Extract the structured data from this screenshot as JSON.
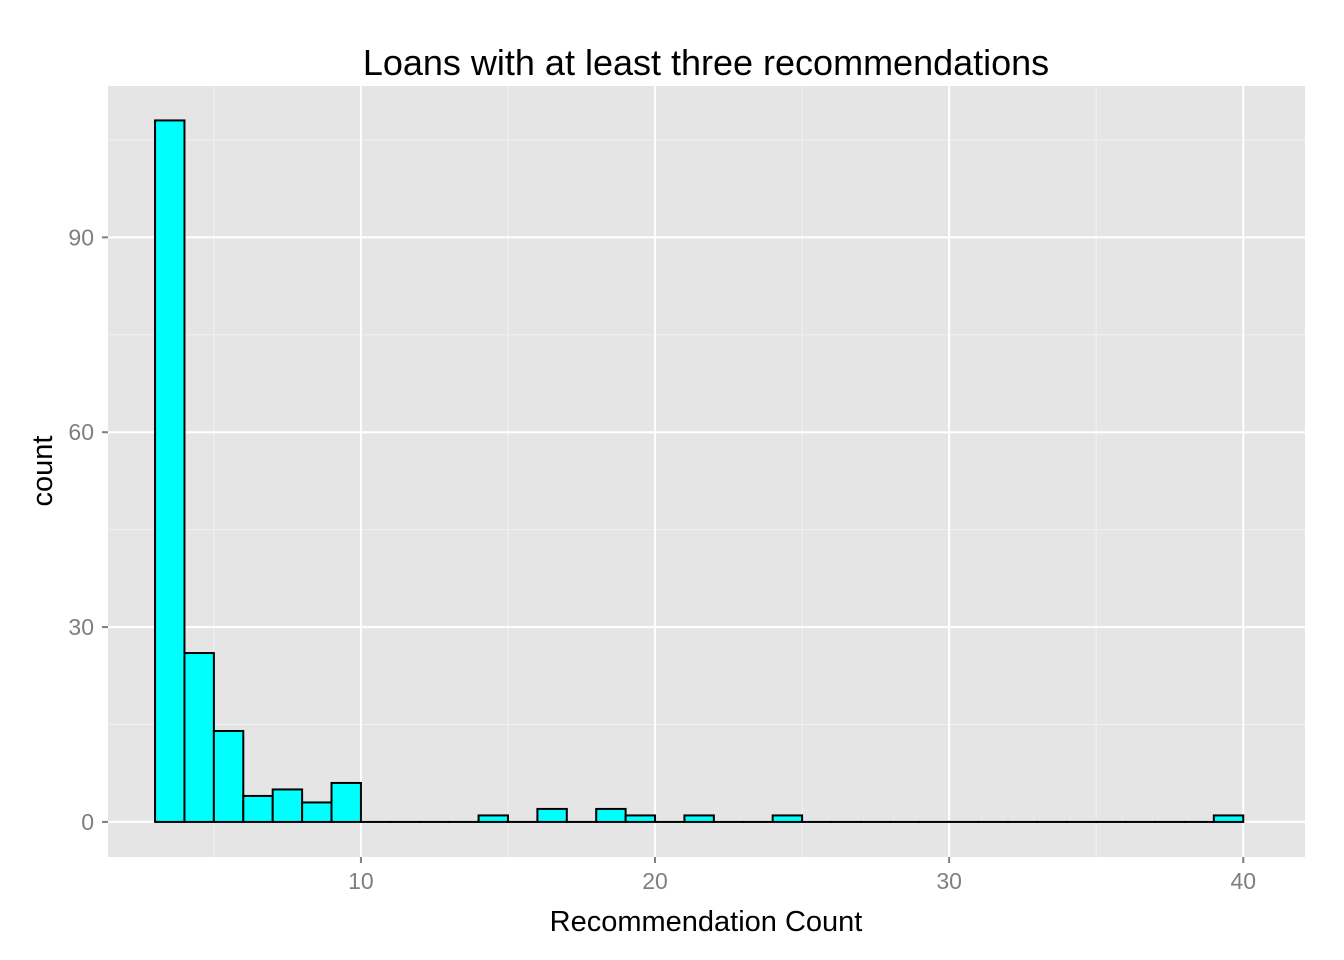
{
  "colors": {
    "panel_background": "#e5e5e5",
    "grid_major": "#ffffff",
    "grid_minor": "#f2f2f2",
    "bar_fill": "#00ffff",
    "bar_outline": "#000000",
    "tick_text": "#7f7f7f",
    "tick_mark": "#7f7f7f"
  },
  "chart_data": {
    "type": "bar",
    "title": "Loans with at least three recommendations",
    "xlabel": "Recommendation Count",
    "ylabel": "count",
    "xlim": [
      1.4,
      42.1
    ],
    "ylim": [
      -5.4,
      113.3
    ],
    "binwidth": 1,
    "bin_starts": [
      3,
      4,
      5,
      6,
      7,
      8,
      9,
      10,
      11,
      12,
      13,
      14,
      15,
      16,
      17,
      18,
      19,
      20,
      21,
      22,
      23,
      24,
      25,
      26,
      27,
      28,
      29,
      30,
      31,
      32,
      33,
      34,
      35,
      36,
      37,
      38,
      39
    ],
    "values": [
      108,
      26,
      14,
      4,
      5,
      3,
      6,
      0,
      0,
      0,
      0,
      1,
      0,
      2,
      0,
      2,
      1,
      0,
      1,
      0,
      0,
      1,
      0,
      0,
      0,
      0,
      0,
      0,
      0,
      0,
      0,
      0,
      0,
      0,
      0,
      0,
      1
    ],
    "x_ticks": [
      10,
      20,
      30,
      40
    ],
    "x_tick_labels": [
      "10",
      "20",
      "30",
      "40"
    ],
    "y_ticks": [
      0,
      30,
      60,
      90
    ],
    "y_tick_labels": [
      "0",
      "30",
      "60",
      "90"
    ],
    "grid": true,
    "legend": "none"
  }
}
